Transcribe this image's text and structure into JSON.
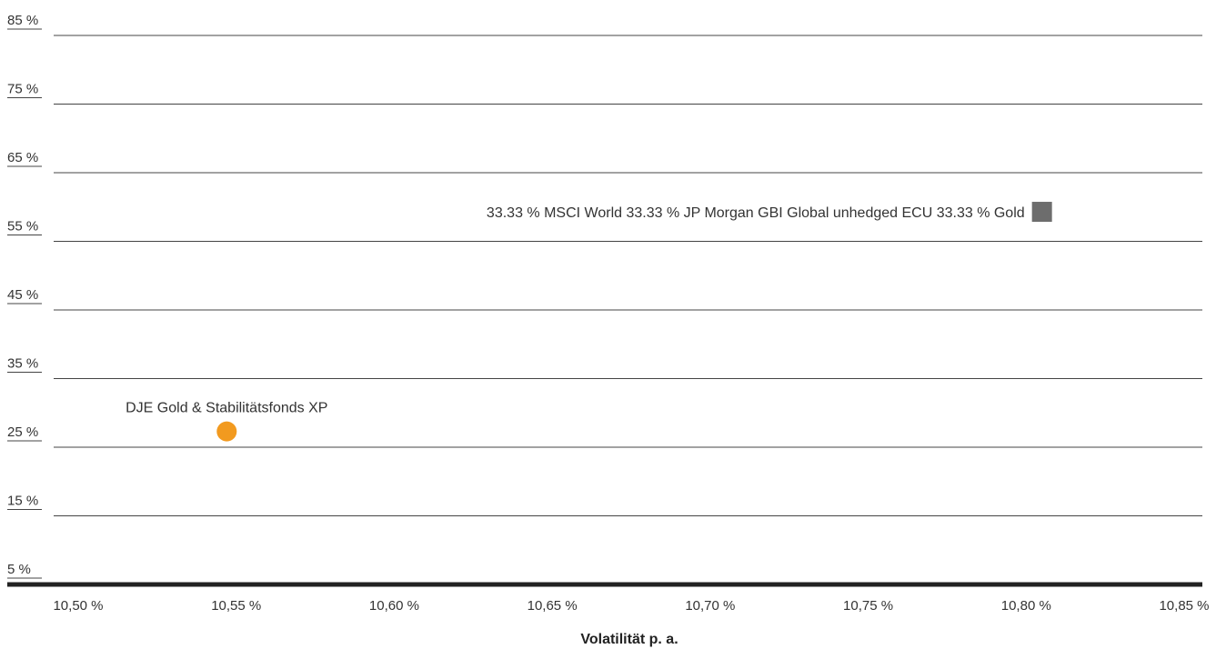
{
  "chart_data": {
    "type": "scatter",
    "xlabel": "Volatilität p. a.",
    "ylabel": "",
    "xlim": [
      10.5,
      10.85
    ],
    "ylim": [
      5,
      85
    ],
    "x_ticks": [
      "10,50 %",
      "10,55 %",
      "10,60 %",
      "10,65 %",
      "10,70 %",
      "10,75 %",
      "10,80 %",
      "10,85 %"
    ],
    "y_ticks": [
      "5 %",
      "15 %",
      "25 %",
      "35 %",
      "45 %",
      "55 %",
      "65 %",
      "75 %",
      "85 %"
    ],
    "x_tick_values": [
      10.5,
      10.55,
      10.6,
      10.65,
      10.7,
      10.75,
      10.8,
      10.85
    ],
    "y_tick_values": [
      5,
      15,
      25,
      35,
      45,
      55,
      65,
      75,
      85
    ],
    "grid": true,
    "series": [
      {
        "name": "DJE Gold & Stabilitätsfonds XP",
        "marker": "circle",
        "color": "#f29a1f",
        "points": [
          {
            "x": 10.547,
            "y": 27.3
          }
        ]
      },
      {
        "name": "33.33 % MSCI World  33.33 % JP Morgan GBI Global unhedged ECU  33.33 % Gold",
        "marker": "square",
        "color": "#6d6d6d",
        "points": [
          {
            "x": 10.805,
            "y": 59.3
          }
        ]
      }
    ]
  }
}
